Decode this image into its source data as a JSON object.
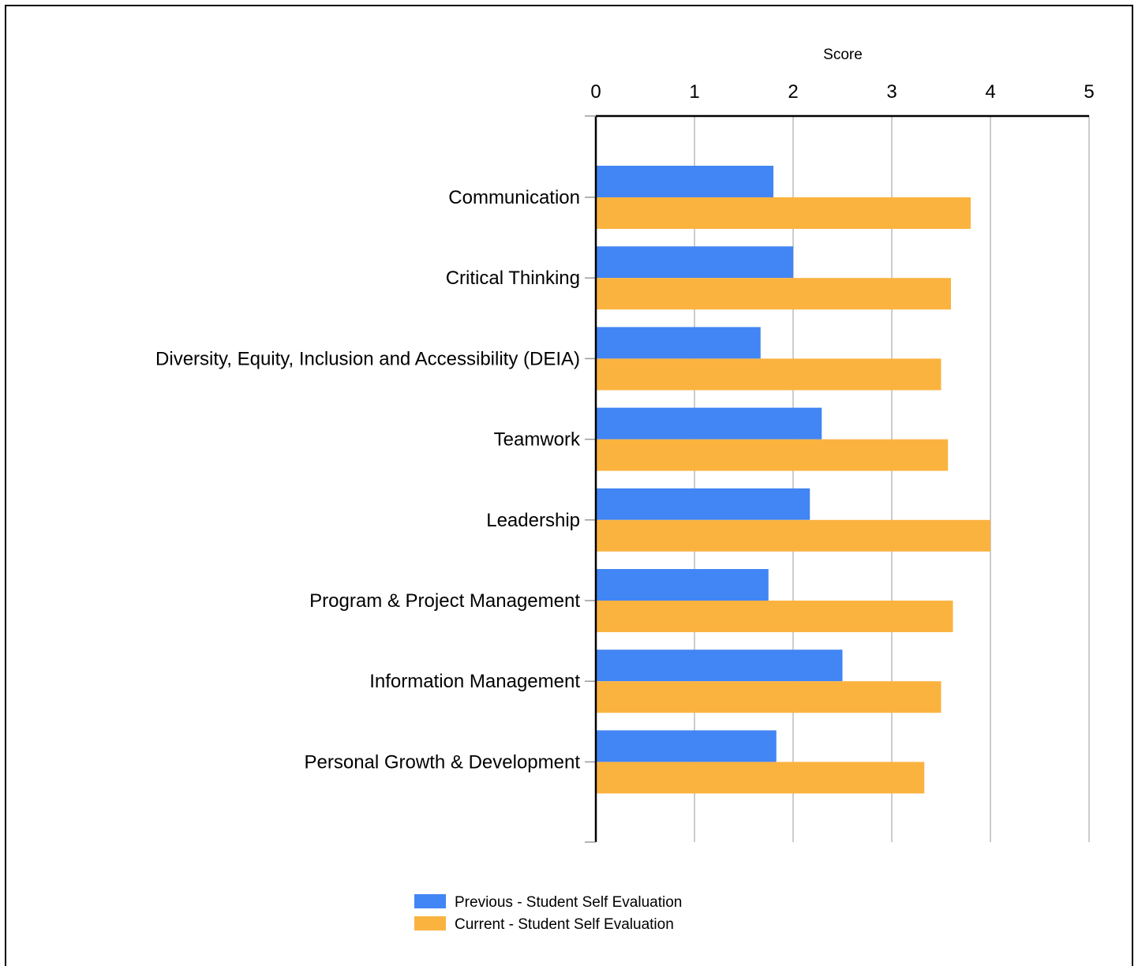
{
  "chart_data": {
    "type": "bar",
    "orientation": "horizontal",
    "title": "",
    "xlabel": "Score",
    "ylabel": "",
    "xlim": [
      0,
      5
    ],
    "xticks": [
      "0",
      "1",
      "2",
      "3",
      "4",
      "5"
    ],
    "x_axis_position": "top",
    "grid": true,
    "legend_position": "bottom",
    "categories": [
      "Communication",
      "Critical Thinking",
      "Diversity, Equity, Inclusion and Accessibility (DEIA)",
      "Teamwork",
      "Leadership",
      "Program & Project Management",
      "Information Management",
      "Personal Growth & Development"
    ],
    "series": [
      {
        "name": "Previous - Student Self Evaluation",
        "color": "#4285f4",
        "values": [
          1.8,
          2.0,
          1.67,
          2.29,
          2.17,
          1.75,
          2.5,
          1.83
        ]
      },
      {
        "name": "Current - Student Self Evaluation",
        "color": "#fbb340",
        "values": [
          3.8,
          3.6,
          3.5,
          3.57,
          4.0,
          3.62,
          3.5,
          3.33
        ]
      }
    ]
  }
}
